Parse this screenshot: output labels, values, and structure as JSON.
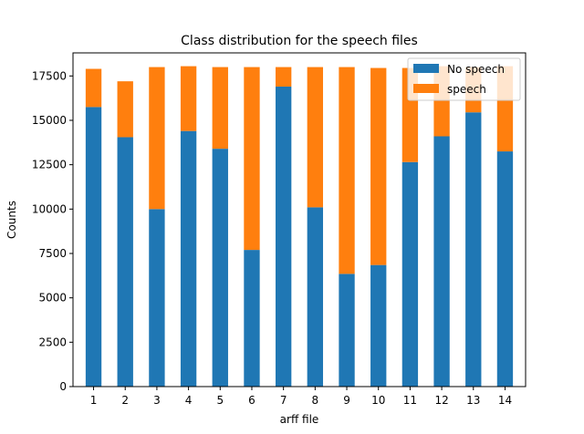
{
  "chart_data": {
    "type": "bar",
    "stacked": true,
    "title": "Class distribution for the speech files",
    "xlabel": "arff file",
    "ylabel": "Counts",
    "categories": [
      "1",
      "2",
      "3",
      "4",
      "5",
      "6",
      "7",
      "8",
      "9",
      "10",
      "11",
      "12",
      "13",
      "14"
    ],
    "series": [
      {
        "name": "No speech",
        "color": "#1f77b4",
        "values": [
          15750,
          14050,
          10000,
          14400,
          13400,
          7700,
          16900,
          10100,
          6350,
          6850,
          12650,
          14100,
          15450,
          13250
        ]
      },
      {
        "name": "speech",
        "color": "#ff7f0e",
        "values": [
          2150,
          3150,
          8000,
          3650,
          4600,
          10300,
          1100,
          7900,
          11650,
          11100,
          5300,
          3950,
          2550,
          4800
        ]
      }
    ],
    "ylim": [
      0,
      18800
    ],
    "yticks": [
      0,
      2500,
      5000,
      7500,
      10000,
      12500,
      15000,
      17500
    ],
    "legend_position": "top-right",
    "grid": false
  }
}
